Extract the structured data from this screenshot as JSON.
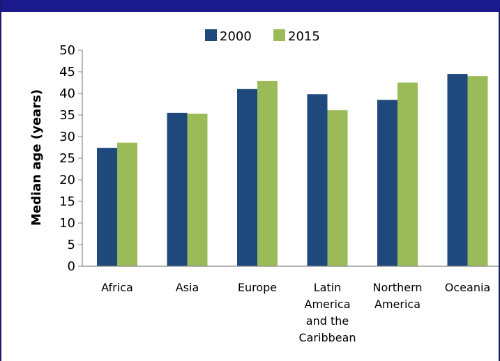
{
  "chart_data": {
    "type": "bar",
    "title": "",
    "xlabel": "",
    "ylabel": "Median age (years)",
    "ylim": [
      0,
      50
    ],
    "yticks": [
      0,
      5,
      10,
      15,
      20,
      25,
      30,
      35,
      40,
      45,
      50
    ],
    "grid": false,
    "legend_position": "top-center",
    "categories": [
      [
        "Africa"
      ],
      [
        "Asia"
      ],
      [
        "Europe"
      ],
      [
        "Latin",
        "America",
        "and the",
        "Caribbean"
      ],
      [
        "Northern",
        "America"
      ],
      [
        "Oceania"
      ]
    ],
    "series": [
      {
        "name": "2000",
        "color": "#1f497d",
        "values": [
          27.4,
          35.5,
          41.0,
          39.8,
          38.5,
          44.5
        ]
      },
      {
        "name": "2015",
        "color": "#9bbb59",
        "values": [
          28.6,
          35.3,
          42.9,
          36.1,
          42.5,
          44.0
        ]
      }
    ]
  },
  "colors": {
    "header_band": "#1a1a8c",
    "axis": "#868686"
  }
}
